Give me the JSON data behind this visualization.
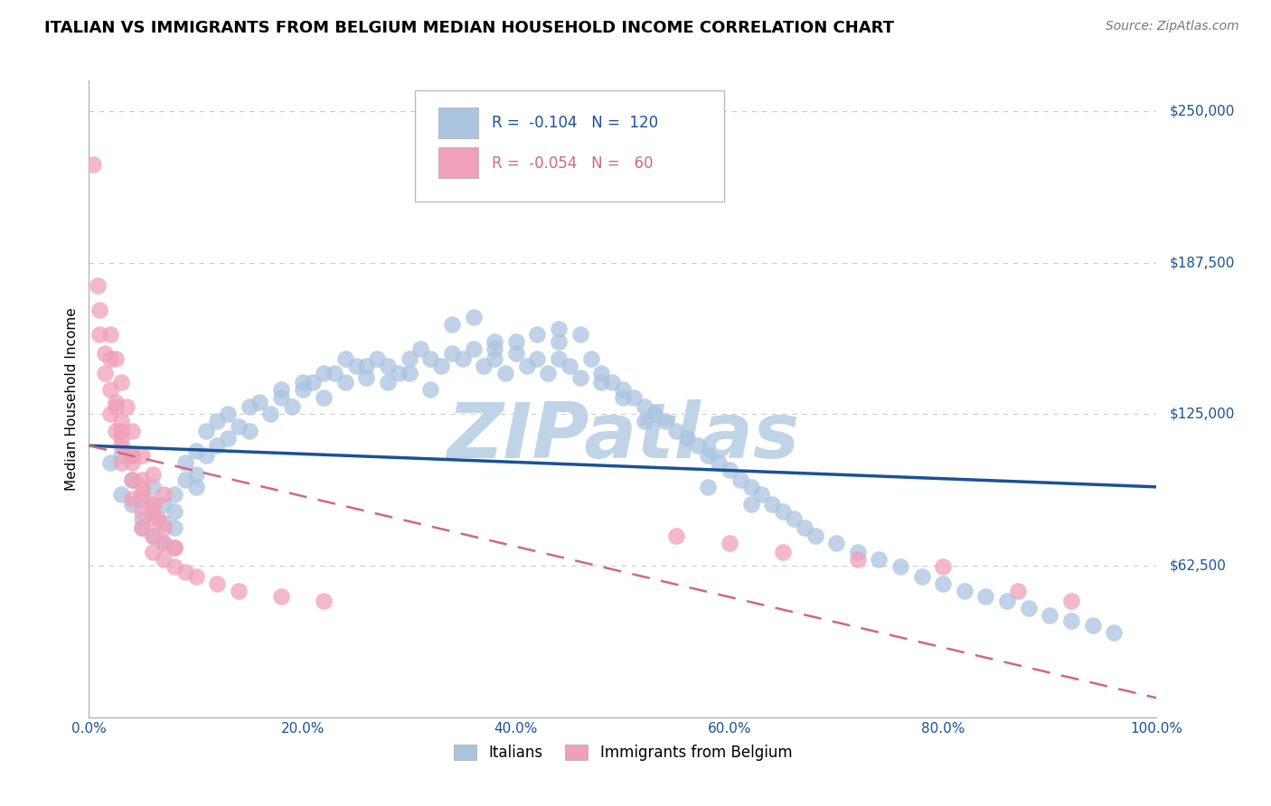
{
  "title": "ITALIAN VS IMMIGRANTS FROM BELGIUM MEDIAN HOUSEHOLD INCOME CORRELATION CHART",
  "source": "Source: ZipAtlas.com",
  "ylabel": "Median Household Income",
  "xlim": [
    0.0,
    1.0
  ],
  "ylim": [
    0,
    262500
  ],
  "yticks": [
    0,
    62500,
    125000,
    187500,
    250000
  ],
  "ytick_labels": [
    "",
    "$62,500",
    "$125,000",
    "$187,500",
    "$250,000"
  ],
  "xtick_labels": [
    "0.0%",
    "20.0%",
    "40.0%",
    "60.0%",
    "80.0%",
    "100.0%"
  ],
  "xticks": [
    0.0,
    0.2,
    0.4,
    0.6,
    0.8,
    1.0
  ],
  "blue_R": -0.104,
  "blue_N": 120,
  "pink_R": -0.054,
  "pink_N": 60,
  "blue_color": "#aac4e0",
  "pink_color": "#f0a0b8",
  "blue_line_color": "#1a5296",
  "pink_line_color": "#d06880",
  "pink_line_style": "dashed",
  "watermark": "ZIPatlas",
  "watermark_color": "#c0d4e8",
  "legend_label_blue": "Italians",
  "legend_label_pink": "Immigrants from Belgium",
  "title_fontsize": 13,
  "axis_label_fontsize": 11,
  "tick_fontsize": 11,
  "blue_points_x": [
    0.02,
    0.03,
    0.03,
    0.04,
    0.04,
    0.05,
    0.05,
    0.05,
    0.06,
    0.06,
    0.06,
    0.07,
    0.07,
    0.07,
    0.08,
    0.08,
    0.08,
    0.09,
    0.09,
    0.1,
    0.1,
    0.1,
    0.11,
    0.11,
    0.12,
    0.12,
    0.13,
    0.13,
    0.14,
    0.15,
    0.15,
    0.16,
    0.17,
    0.18,
    0.19,
    0.2,
    0.21,
    0.22,
    0.23,
    0.24,
    0.25,
    0.26,
    0.27,
    0.28,
    0.29,
    0.3,
    0.31,
    0.32,
    0.33,
    0.34,
    0.35,
    0.36,
    0.37,
    0.38,
    0.38,
    0.39,
    0.4,
    0.41,
    0.42,
    0.43,
    0.44,
    0.44,
    0.45,
    0.46,
    0.47,
    0.48,
    0.49,
    0.5,
    0.51,
    0.52,
    0.53,
    0.54,
    0.55,
    0.56,
    0.57,
    0.58,
    0.59,
    0.6,
    0.61,
    0.62,
    0.63,
    0.64,
    0.65,
    0.66,
    0.67,
    0.68,
    0.7,
    0.72,
    0.74,
    0.76,
    0.78,
    0.8,
    0.82,
    0.84,
    0.86,
    0.88,
    0.9,
    0.92,
    0.94,
    0.96,
    0.44,
    0.46,
    0.34,
    0.36,
    0.4,
    0.42,
    0.48,
    0.5,
    0.38,
    0.52,
    0.28,
    0.3,
    0.26,
    0.24,
    0.32,
    0.22,
    0.2,
    0.18,
    0.62,
    0.58
  ],
  "blue_points_y": [
    105000,
    92000,
    108000,
    88000,
    98000,
    82000,
    90000,
    78000,
    85000,
    75000,
    95000,
    80000,
    88000,
    72000,
    85000,
    92000,
    78000,
    98000,
    105000,
    100000,
    110000,
    95000,
    108000,
    118000,
    112000,
    122000,
    115000,
    125000,
    120000,
    128000,
    118000,
    130000,
    125000,
    132000,
    128000,
    135000,
    138000,
    132000,
    142000,
    138000,
    145000,
    140000,
    148000,
    145000,
    142000,
    148000,
    152000,
    148000,
    145000,
    150000,
    148000,
    152000,
    145000,
    148000,
    155000,
    142000,
    150000,
    145000,
    148000,
    142000,
    148000,
    155000,
    145000,
    140000,
    148000,
    142000,
    138000,
    135000,
    132000,
    128000,
    125000,
    122000,
    118000,
    115000,
    112000,
    108000,
    105000,
    102000,
    98000,
    95000,
    92000,
    88000,
    85000,
    82000,
    78000,
    75000,
    72000,
    68000,
    65000,
    62000,
    58000,
    55000,
    52000,
    50000,
    48000,
    45000,
    42000,
    40000,
    38000,
    35000,
    160000,
    158000,
    162000,
    165000,
    155000,
    158000,
    138000,
    132000,
    152000,
    122000,
    138000,
    142000,
    145000,
    148000,
    135000,
    142000,
    138000,
    135000,
    88000,
    95000
  ],
  "pink_points_x": [
    0.004,
    0.008,
    0.01,
    0.01,
    0.015,
    0.015,
    0.02,
    0.02,
    0.02,
    0.025,
    0.025,
    0.03,
    0.03,
    0.03,
    0.04,
    0.04,
    0.04,
    0.05,
    0.05,
    0.05,
    0.06,
    0.06,
    0.06,
    0.07,
    0.07,
    0.08,
    0.08,
    0.09,
    0.1,
    0.12,
    0.14,
    0.18,
    0.22,
    0.55,
    0.6,
    0.65,
    0.72,
    0.8,
    0.87,
    0.92,
    0.02,
    0.025,
    0.03,
    0.035,
    0.04,
    0.05,
    0.06,
    0.07,
    0.03,
    0.04,
    0.05,
    0.06,
    0.07,
    0.08,
    0.025,
    0.03,
    0.04,
    0.05,
    0.06,
    0.065
  ],
  "pink_points_y": [
    228000,
    178000,
    168000,
    158000,
    150000,
    142000,
    148000,
    135000,
    125000,
    130000,
    118000,
    122000,
    112000,
    105000,
    108000,
    98000,
    90000,
    92000,
    85000,
    78000,
    82000,
    75000,
    68000,
    72000,
    65000,
    70000,
    62000,
    60000,
    58000,
    55000,
    52000,
    50000,
    48000,
    75000,
    72000,
    68000,
    65000,
    62000,
    52000,
    48000,
    158000,
    148000,
    138000,
    128000,
    118000,
    108000,
    100000,
    92000,
    118000,
    108000,
    95000,
    88000,
    78000,
    70000,
    128000,
    115000,
    105000,
    98000,
    88000,
    82000
  ],
  "blue_trendline_x": [
    0.0,
    1.0
  ],
  "blue_trendline_y": [
    112000,
    95000
  ],
  "pink_trendline_x": [
    0.0,
    1.0
  ],
  "pink_trendline_y": [
    112000,
    8000
  ]
}
